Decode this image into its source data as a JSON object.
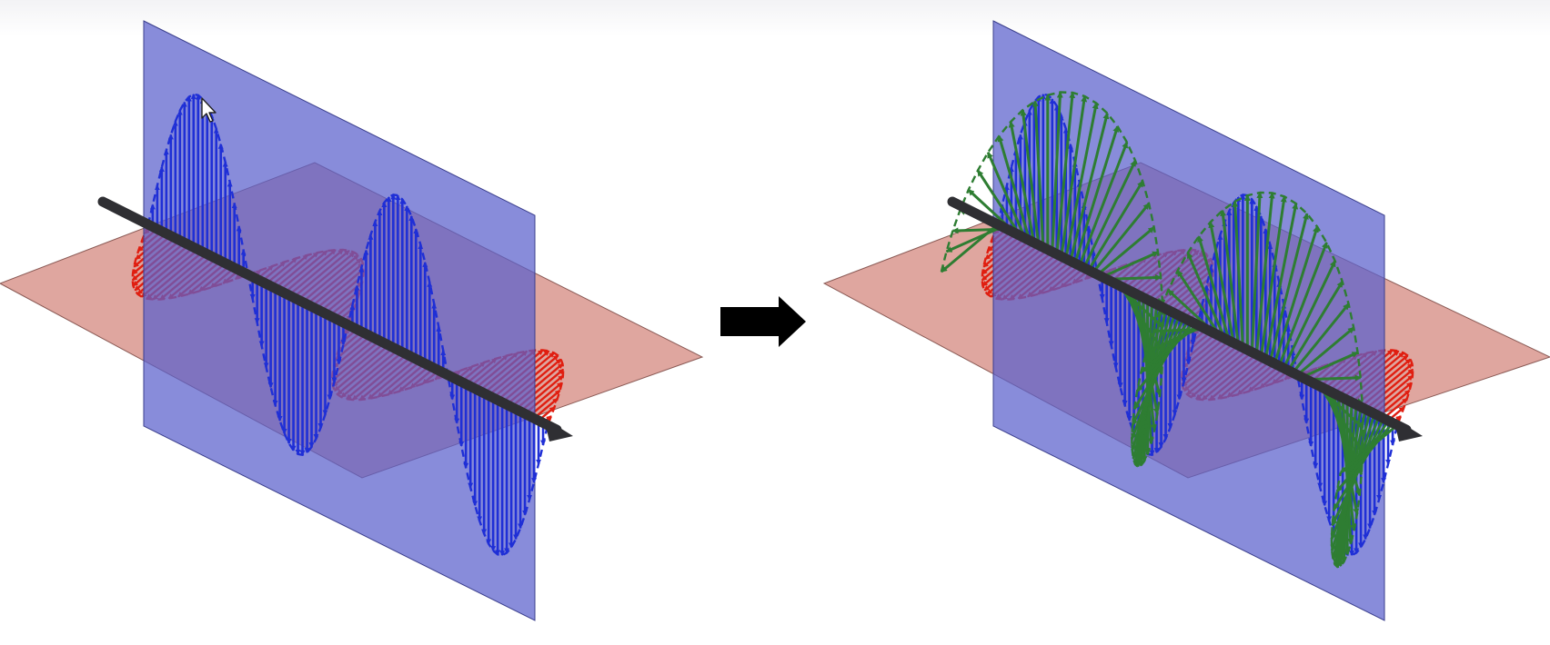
{
  "figure": {
    "left_diagram": {
      "name": "linear-polarization",
      "components": [
        "vertical-component",
        "horizontal-component",
        "propagation-axis"
      ]
    },
    "right_diagram": {
      "name": "circular-polarization",
      "components": [
        "vertical-component",
        "horizontal-component",
        "resultant-vector",
        "propagation-axis"
      ]
    },
    "transition_icon": "right-arrow-icon",
    "cursor_icon": "mouse-pointer-icon"
  },
  "colors": {
    "vertical_plane": "#7b7fd6",
    "horizontal_plane": "#d9968e",
    "vertical_wave": "#1f2fd6",
    "horizontal_wave": "#e01e10",
    "resultant_wave": "#2e7d32",
    "axis": "#2f2f33",
    "arrow": "#000000"
  }
}
